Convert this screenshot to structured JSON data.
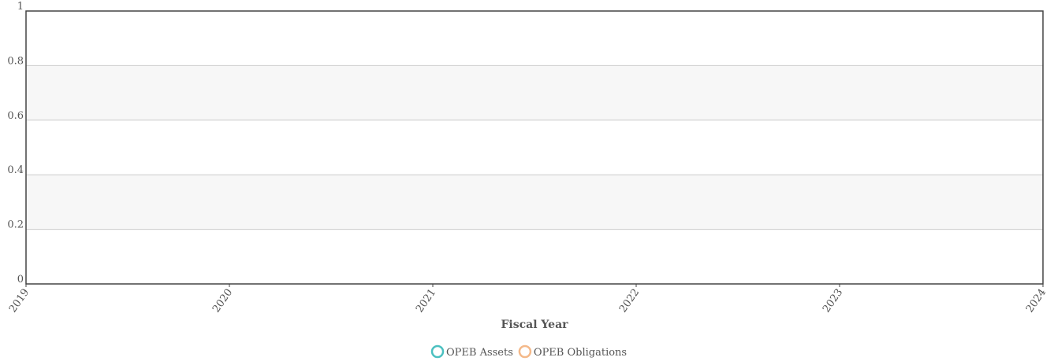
{
  "chart_data": {
    "type": "line",
    "x_label": "Fiscal Year",
    "x": [
      2019,
      2020,
      2021,
      2022,
      2023,
      2024
    ],
    "series": [
      {
        "name": "OPEB Assets",
        "color": "#4bc0c0",
        "values": [
          null,
          null,
          null,
          null,
          null,
          null
        ]
      },
      {
        "name": "OPEB Obligations",
        "color": "#f4b98a",
        "values": [
          null,
          null,
          null,
          null,
          null,
          null
        ]
      }
    ],
    "xlim": [
      2019,
      2024
    ],
    "xticks": [
      2019,
      2020,
      2021,
      2022,
      2023,
      2024
    ],
    "ylim": [
      0,
      1
    ],
    "yticks": [
      0,
      0.2,
      0.4,
      0.6,
      0.8,
      1
    ],
    "grid": true,
    "legend": "bottom"
  }
}
